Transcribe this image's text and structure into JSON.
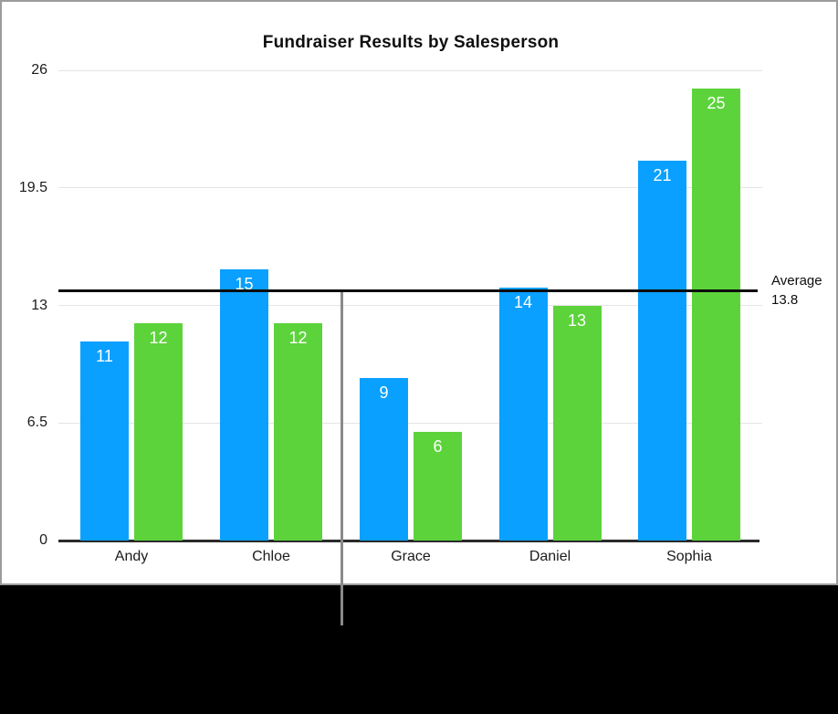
{
  "chart_data": {
    "type": "bar",
    "title": "Fundraiser Results by Salesperson",
    "categories": [
      "Andy",
      "Chloe",
      "Grace",
      "Daniel",
      "Sophia"
    ],
    "series": [
      {
        "name": "series-blue",
        "color": "#0aa0ff",
        "values": [
          11,
          15,
          9,
          14,
          21
        ]
      },
      {
        "name": "series-green",
        "color": "#5cd33b",
        "values": [
          12,
          12,
          6,
          13,
          25
        ]
      }
    ],
    "y_ticks": [
      0,
      6.5,
      13,
      19.5,
      26
    ],
    "ylim": [
      0,
      26
    ],
    "grid": true,
    "legend": "none",
    "value_labels": true,
    "average_line": {
      "value": 13.8,
      "label_line1": "Average",
      "label_line2": "13.8",
      "color": "#0d0d0d"
    }
  },
  "style_colors": {
    "bar_blue": "#0aa0ff",
    "bar_green": "#5cd33b",
    "gridline": "#e4e4e4",
    "axis": "#2a2a2a",
    "panel_border": "#9c9c9c",
    "callout_line": "#8a8a8a",
    "background_strip": "#000000"
  }
}
